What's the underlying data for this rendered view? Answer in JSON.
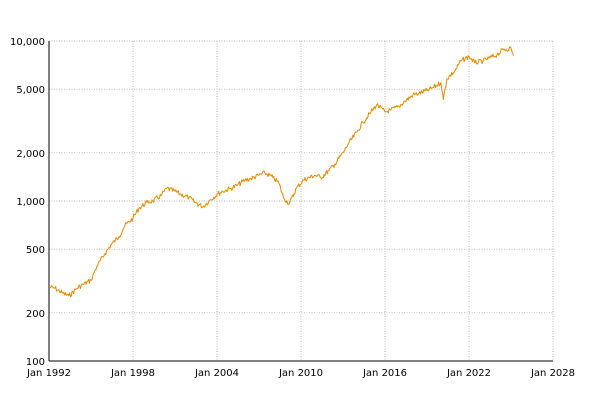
{
  "chart_data": {
    "type": "line",
    "title": "",
    "xlabel": "",
    "ylabel": "",
    "x_scale": "time",
    "y_scale": "log",
    "grid": true,
    "legend": "none",
    "line_color": "#e08a00",
    "xlim": [
      "1992-01",
      "2028-01"
    ],
    "ylim": [
      100,
      10000
    ],
    "x_ticks": [
      "1992-01",
      "1998-01",
      "2004-01",
      "2010-01",
      "2016-01",
      "2022-01",
      "2028-01"
    ],
    "x_tick_labels": [
      "Jan 1992",
      "Jan 1998",
      "Jan 2004",
      "Jan 2010",
      "Jan 2016",
      "Jan 2022",
      "Jan 2028"
    ],
    "y_ticks": [
      100,
      200,
      500,
      1000,
      2000,
      5000,
      10000
    ],
    "y_tick_labels": [
      "100",
      "200",
      "500",
      "1,000",
      "2,000",
      "5,000",
      "10,000"
    ],
    "series": [
      {
        "values": [
          [
            "1992-01",
            290
          ],
          [
            "1992-06",
            285
          ],
          [
            "1993-01",
            265
          ],
          [
            "1993-06",
            255
          ],
          [
            "1994-01",
            285
          ],
          [
            "1994-06",
            300
          ],
          [
            "1995-01",
            320
          ],
          [
            "1995-06",
            390
          ],
          [
            "1996-01",
            470
          ],
          [
            "1996-06",
            530
          ],
          [
            "1997-01",
            600
          ],
          [
            "1997-06",
            700
          ],
          [
            "1998-01",
            780
          ],
          [
            "1998-06",
            900
          ],
          [
            "1999-01",
            980
          ],
          [
            "1999-06",
            1000
          ],
          [
            "2000-01",
            1080
          ],
          [
            "2000-06",
            1200
          ],
          [
            "2001-01",
            1150
          ],
          [
            "2001-06",
            1100
          ],
          [
            "2002-01",
            1050
          ],
          [
            "2002-06",
            980
          ],
          [
            "2003-01",
            920
          ],
          [
            "2003-06",
            1000
          ],
          [
            "2004-01",
            1100
          ],
          [
            "2004-06",
            1150
          ],
          [
            "2005-01",
            1200
          ],
          [
            "2005-06",
            1250
          ],
          [
            "2006-01",
            1350
          ],
          [
            "2006-06",
            1380
          ],
          [
            "2007-01",
            1450
          ],
          [
            "2007-06",
            1500
          ],
          [
            "2008-01",
            1400
          ],
          [
            "2008-06",
            1300
          ],
          [
            "2008-10",
            1050
          ],
          [
            "2009-03",
            960
          ],
          [
            "2009-09",
            1200
          ],
          [
            "2010-03",
            1350
          ],
          [
            "2011-01",
            1450
          ],
          [
            "2011-06",
            1400
          ],
          [
            "2012-01",
            1550
          ],
          [
            "2012-06",
            1700
          ],
          [
            "2013-01",
            2000
          ],
          [
            "2013-06",
            2300
          ],
          [
            "2014-01",
            2700
          ],
          [
            "2014-06",
            3100
          ],
          [
            "2015-01",
            3600
          ],
          [
            "2015-06",
            4000
          ],
          [
            "2016-01",
            3600
          ],
          [
            "2016-06",
            3700
          ],
          [
            "2017-01",
            3900
          ],
          [
            "2017-06",
            4200
          ],
          [
            "2018-01",
            4600
          ],
          [
            "2018-06",
            4700
          ],
          [
            "2019-01",
            4900
          ],
          [
            "2019-06",
            5100
          ],
          [
            "2020-01",
            5500
          ],
          [
            "2020-03",
            4300
          ],
          [
            "2020-06",
            5800
          ],
          [
            "2021-01",
            6500
          ],
          [
            "2021-06",
            7500
          ],
          [
            "2022-01",
            8000
          ],
          [
            "2022-06",
            7300
          ],
          [
            "2023-01",
            7500
          ],
          [
            "2023-06",
            7800
          ],
          [
            "2024-01",
            8200
          ],
          [
            "2024-06",
            8800
          ],
          [
            "2025-01",
            9000
          ],
          [
            "2025-03",
            8100
          ]
        ]
      }
    ]
  }
}
